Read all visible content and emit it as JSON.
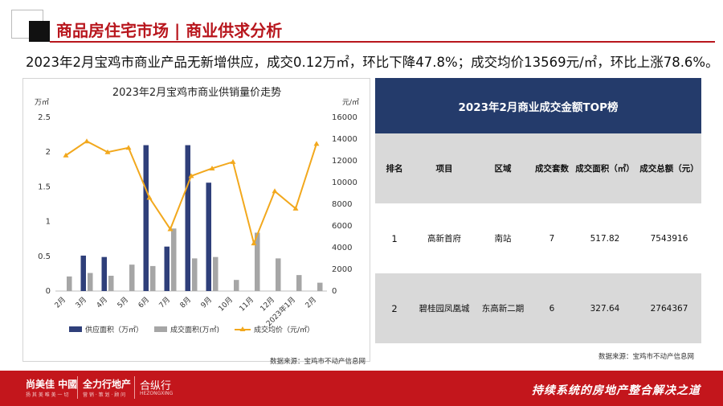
{
  "header": {
    "title": "商品房住宅市场",
    "separator": "|",
    "subtitle": "商业供求分析"
  },
  "headline": "2023年2月宝鸡市商业产品无新增供应，成交0.12万㎡，环比下降47.8%；成交均价13569元/㎡，环比上涨78.6%。",
  "colors": {
    "brand_red": "#c3161c",
    "title_red": "#b8161d",
    "supply_bar": "#2f3f7a",
    "deal_bar": "#a6a6a6",
    "price_line": "#f2a81d",
    "table_header": "#243b6b",
    "table_stripe": "#d9d9d9"
  },
  "chart_data": {
    "type": "bar",
    "title": "2023年2月宝鸡市商业供销量价走势",
    "y_left_unit": "万㎡",
    "y_right_unit": "元/㎡",
    "y_left_range": [
      0,
      2.5
    ],
    "y_right_range": [
      0,
      16000
    ],
    "y_left_ticks": [
      "0",
      "0.5",
      "1",
      "1.5",
      "2",
      "2.5"
    ],
    "y_right_ticks": [
      "0",
      "2000",
      "4000",
      "6000",
      "8000",
      "10000",
      "12000",
      "14000",
      "16000"
    ],
    "categories": [
      "2月",
      "3月",
      "4月",
      "5月",
      "6月",
      "7月",
      "8月",
      "9月",
      "10月",
      "11月",
      "12月",
      "2023年1月",
      "2月"
    ],
    "series": [
      {
        "name": "供应面积（万㎡）",
        "kind": "bar",
        "axis": "left",
        "values": [
          0,
          0.51,
          0.49,
          0,
          2.1,
          0.64,
          2.1,
          1.56,
          0,
          0,
          0,
          0,
          0
        ]
      },
      {
        "name": "成交面积(万㎡)",
        "kind": "bar",
        "axis": "left",
        "values": [
          0.21,
          0.26,
          0.22,
          0.38,
          0.36,
          0.9,
          0.47,
          0.49,
          0.16,
          0.84,
          0.47,
          0.23,
          0.12
        ]
      },
      {
        "name": "成交均价（元/㎡）",
        "kind": "line",
        "axis": "right",
        "values": [
          12500,
          13800,
          12800,
          13200,
          8600,
          5700,
          10600,
          11300,
          11900,
          4400,
          9200,
          7600,
          13569
        ]
      }
    ],
    "legend_position": "bottom",
    "grid": false
  },
  "chart_source": "数据来源：宝鸡市不动产信息网",
  "table": {
    "title": "2023年2月商业成交金额TOP榜",
    "columns": [
      "排名",
      "项目",
      "区域",
      "成交套数",
      "成交面积（㎡）",
      "成交总额（元）"
    ],
    "rows": [
      {
        "rank": "1",
        "project": "高新首府",
        "area": "南站",
        "units": "7",
        "size": "517.82",
        "total": "7543916"
      },
      {
        "rank": "2",
        "project": "碧桂园凤凰城",
        "area": "东高新二期",
        "units": "6",
        "size": "327.64",
        "total": "2764367"
      }
    ],
    "source": "数据来源：宝鸡市不动产信息网"
  },
  "footer": {
    "logo1": "尚美佳 中國",
    "logo1_sub": "扬 其 美 唯 美 一 切",
    "logo2": "全力行地产",
    "logo2_sub": "营 销 · 策 划 · 顾 问",
    "logo3": "合纵行",
    "logo3_sub": "HEZONGXING",
    "slogan": "持续系统的房地产整合解决之道"
  }
}
